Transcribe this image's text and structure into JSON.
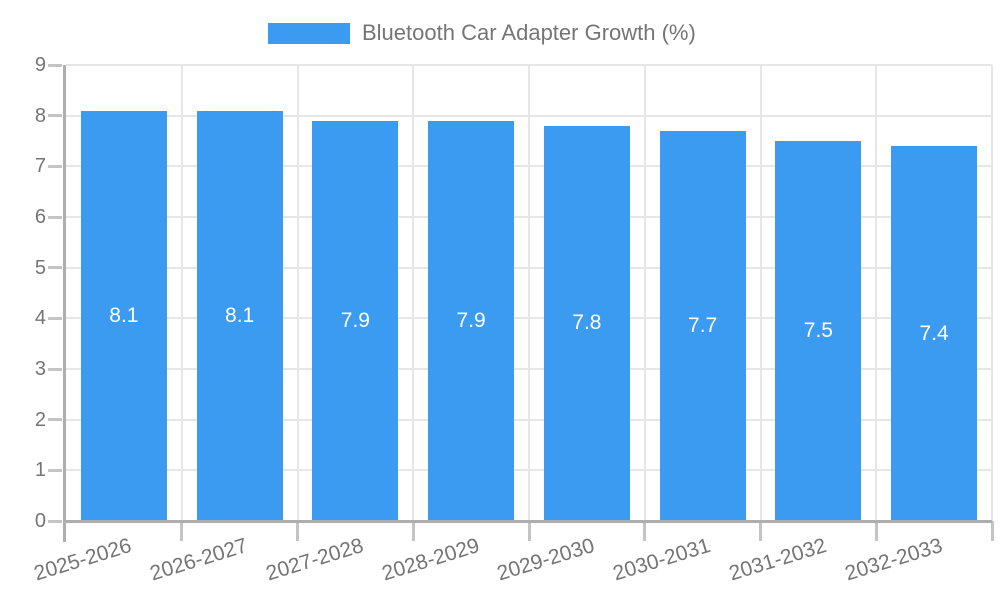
{
  "legend": {
    "label": "Bluetooth Car Adapter Growth (%)"
  },
  "colors": {
    "bar": "#3B9BF0",
    "grid": "#e6e6e6",
    "axis": "#aeaeae",
    "tick": "#c4c4c4",
    "text": "#757575",
    "value_label": "#ffffff",
    "background": "#ffffff"
  },
  "chart_data": {
    "type": "bar",
    "title": "Bluetooth Car Adapter Growth (%)",
    "categories": [
      "2025-2026",
      "2026-2027",
      "2027-2028",
      "2028-2029",
      "2029-2030",
      "2030-2031",
      "2031-2032",
      "2032-2033"
    ],
    "values": [
      8.1,
      8.1,
      7.9,
      7.9,
      7.8,
      7.7,
      7.5,
      7.4
    ],
    "xlabel": "",
    "ylabel": "",
    "ylim": [
      0,
      9
    ],
    "yticks": [
      0,
      1,
      2,
      3,
      4,
      5,
      6,
      7,
      8,
      9
    ],
    "grid": true,
    "legend_position": "top-center",
    "value_labels": "inside-center",
    "x_label_rotation_deg": -17
  }
}
